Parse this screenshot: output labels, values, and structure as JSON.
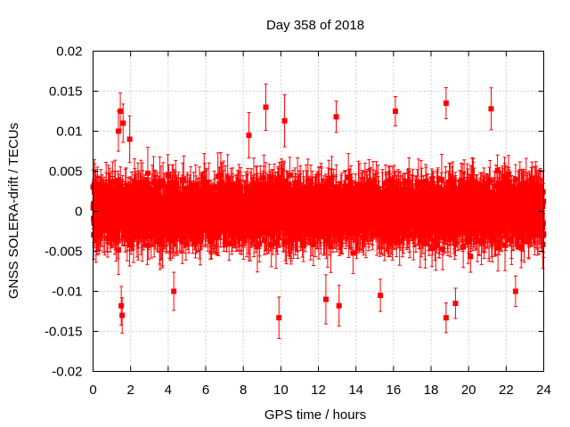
{
  "chart_data": {
    "type": "scatter",
    "title": "Day 358 of 2018",
    "xlabel": "GPS time / hours",
    "ylabel": "GNSS SOLERA-drift / TECUs",
    "xlim": [
      0,
      24
    ],
    "ylim": [
      -0.02,
      0.02
    ],
    "xticks": [
      0,
      2,
      4,
      6,
      8,
      10,
      12,
      14,
      16,
      18,
      20,
      22,
      24
    ],
    "yticks": [
      -0.02,
      -0.015,
      -0.01,
      -0.005,
      0,
      0.005,
      0.01,
      0.015,
      0.02
    ],
    "ytick_labels": [
      "-0.02",
      "-0.015",
      "-0.01",
      "-0.005",
      "0",
      "0.005",
      "0.01",
      "0.015",
      "0.02"
    ],
    "grid": true,
    "series_color": "#ff0000",
    "marker": "square",
    "error_bars": true,
    "sampling_interval_hours": 0.0083,
    "typical_error": 0.0025,
    "value_range_typical": [
      -0.006,
      0.006
    ],
    "outliers": [
      {
        "x": 1.35,
        "y": 0.01
      },
      {
        "x": 1.45,
        "y": 0.0125
      },
      {
        "x": 1.5,
        "y": -0.0118
      },
      {
        "x": 1.55,
        "y": -0.013
      },
      {
        "x": 1.6,
        "y": 0.011
      },
      {
        "x": 1.95,
        "y": 0.009
      },
      {
        "x": 4.3,
        "y": -0.01
      },
      {
        "x": 8.3,
        "y": 0.0095
      },
      {
        "x": 9.2,
        "y": 0.013
      },
      {
        "x": 9.9,
        "y": -0.0133
      },
      {
        "x": 10.2,
        "y": 0.0113
      },
      {
        "x": 12.4,
        "y": -0.011
      },
      {
        "x": 12.95,
        "y": 0.0118
      },
      {
        "x": 13.1,
        "y": -0.0118
      },
      {
        "x": 15.3,
        "y": -0.0105
      },
      {
        "x": 16.1,
        "y": 0.0125
      },
      {
        "x": 18.8,
        "y": 0.0135
      },
      {
        "x": 18.8,
        "y": -0.0133
      },
      {
        "x": 19.3,
        "y": -0.0115
      },
      {
        "x": 21.2,
        "y": 0.0128
      },
      {
        "x": 22.5,
        "y": -0.01
      }
    ]
  }
}
